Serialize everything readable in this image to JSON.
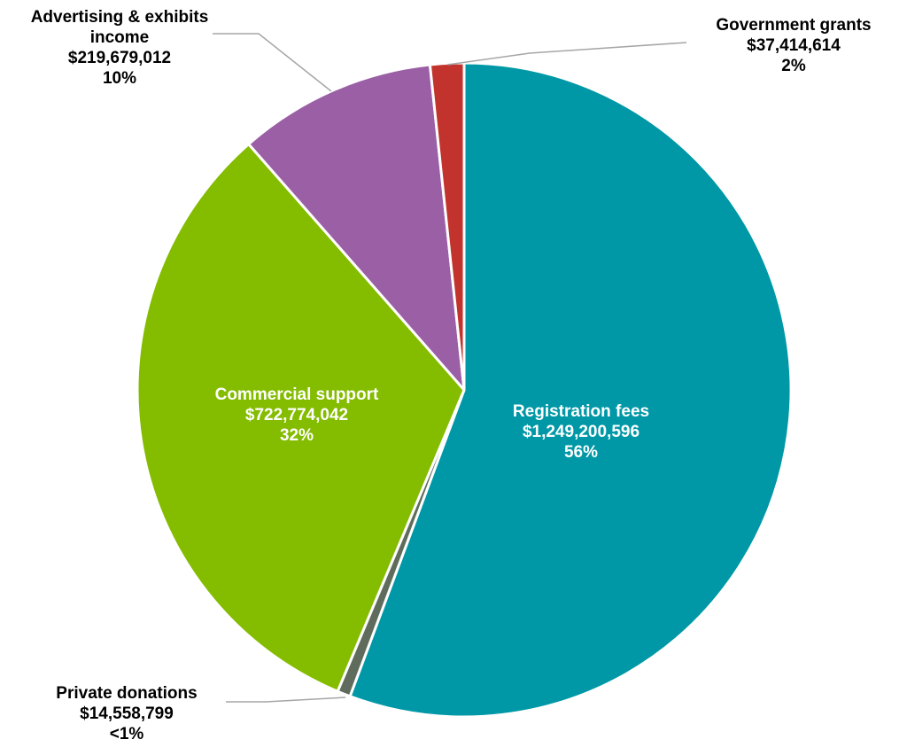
{
  "chart_data": {
    "type": "pie",
    "start_angle_deg": 0,
    "direction": "clockwise",
    "slices": [
      {
        "name": "Registration fees",
        "value": 1249200596,
        "value_label": "$1,249,200,596",
        "percent_label": "56%",
        "color": "#0098A6"
      },
      {
        "name": "Private donations",
        "value": 14558799,
        "value_label": "$14,558,799",
        "percent_label": "<1%",
        "color": "#5F6B5C"
      },
      {
        "name": "Commercial support",
        "value": 722774042,
        "value_label": "$722,774,042",
        "percent_label": "32%",
        "color": "#84BC00"
      },
      {
        "name": "Advertising & exhibits income",
        "value": 219679012,
        "value_label": "$219,679,012",
        "percent_label": "10%",
        "color": "#9B5FA5"
      },
      {
        "name": "Government grants",
        "value": 37414614,
        "value_label": "$37,414,614",
        "percent_label": "2%",
        "color": "#C1332C"
      }
    ]
  },
  "labels": {
    "registration": {
      "line1": "Registration fees",
      "line2": "$1,249,200,596",
      "line3": "56%"
    },
    "commercial": {
      "line1": "Commercial support",
      "line2": "$722,774,042",
      "line3": "32%"
    },
    "advertising": {
      "line1": "Advertising & exhibits",
      "line2": "income",
      "line3": "$219,679,012",
      "line4": "10%"
    },
    "government": {
      "line1": "Government grants",
      "line2": "$37,414,614",
      "line3": "2%"
    },
    "private": {
      "line1": "Private donations",
      "line2": "$14,558,799",
      "line3": "<1%"
    }
  }
}
